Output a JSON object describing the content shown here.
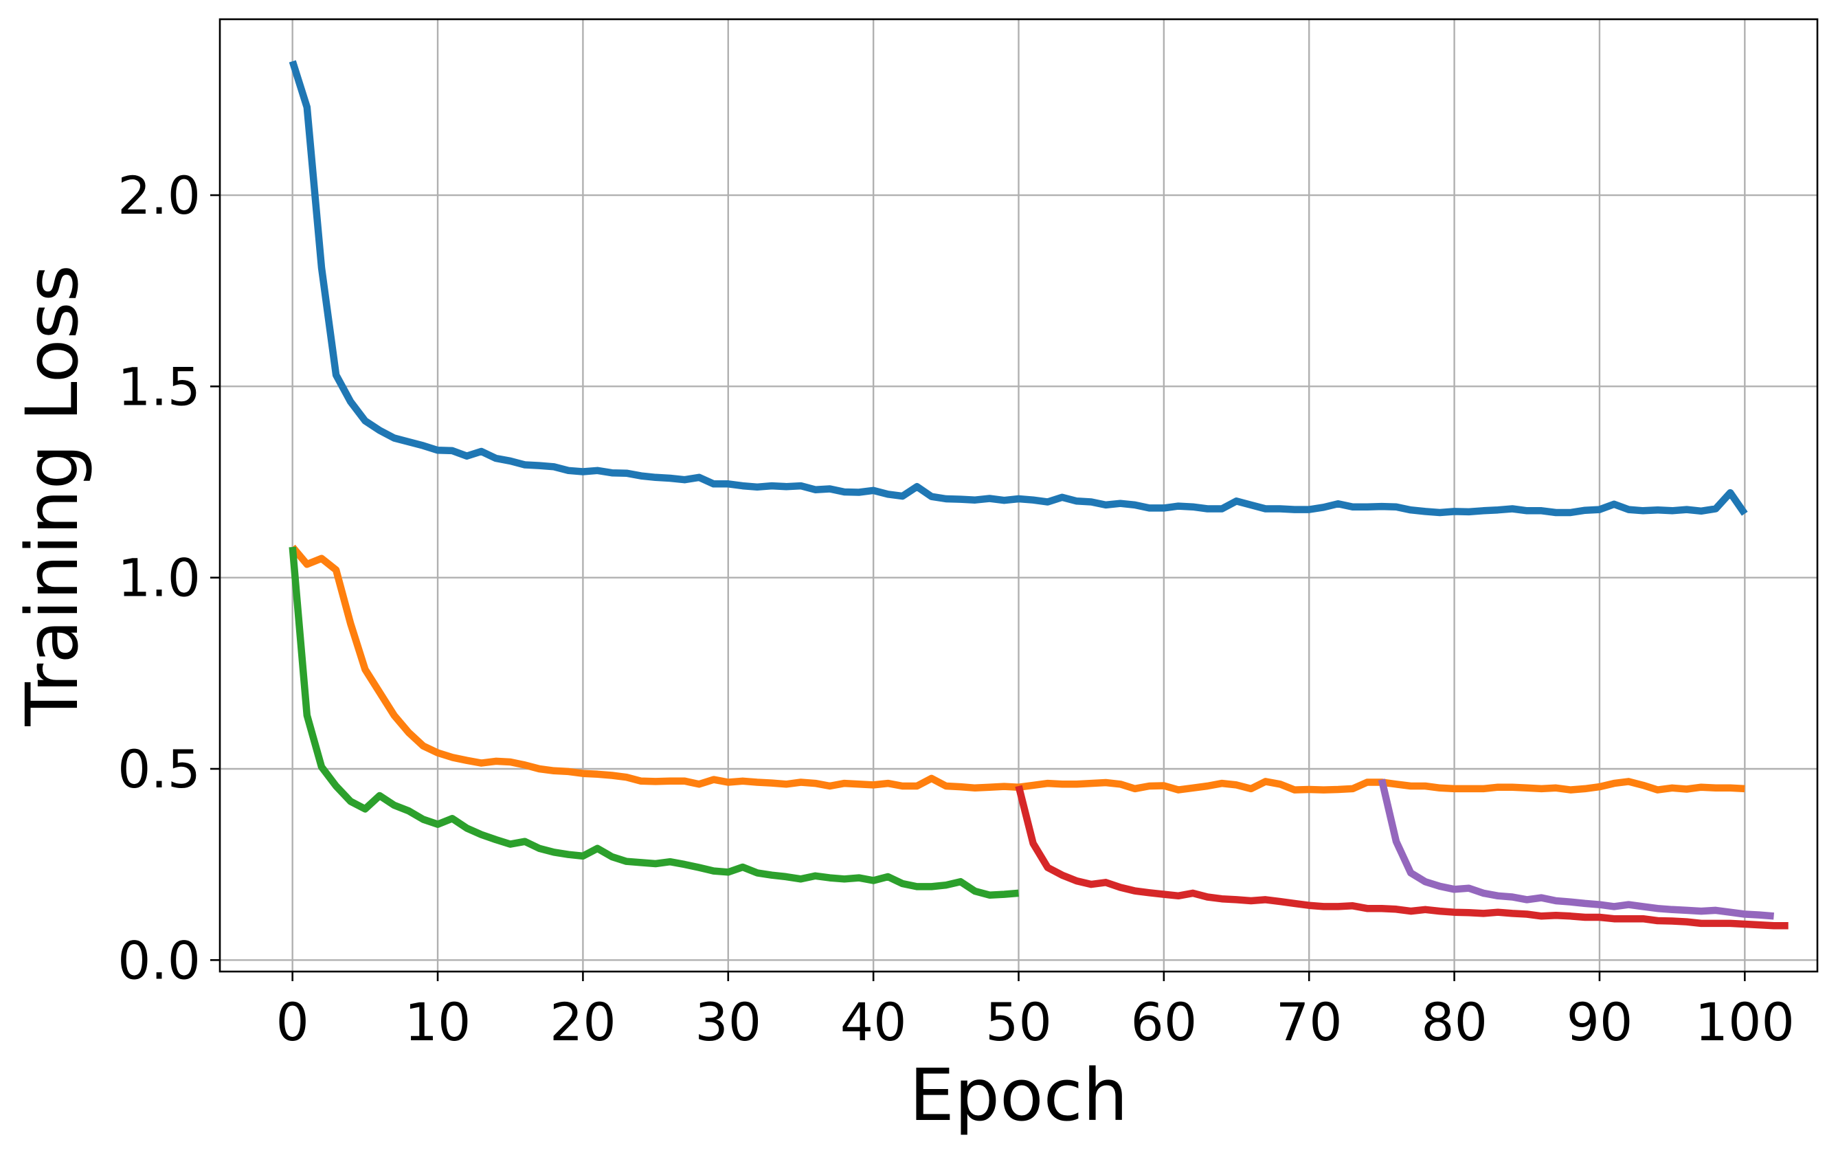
{
  "chart_data": {
    "type": "line",
    "title": "",
    "xlabel": "Epoch",
    "ylabel": "Training Loss",
    "xlim": [
      -5,
      105
    ],
    "ylim": [
      -0.03,
      2.46
    ],
    "xticks": [
      0,
      10,
      20,
      30,
      40,
      50,
      60,
      70,
      80,
      90,
      100
    ],
    "xtick_labels": [
      "0",
      "10",
      "20",
      "30",
      "40",
      "50",
      "60",
      "70",
      "80",
      "90",
      "100"
    ],
    "yticks": [
      0.0,
      0.5,
      1.0,
      1.5,
      2.0
    ],
    "ytick_labels": [
      "0.0",
      "0.5",
      "1.0",
      "1.5",
      "2.0"
    ],
    "grid": true,
    "legend": false,
    "series": [
      {
        "color": "#1f77b4",
        "x_start": 0,
        "values": [
          2.35,
          2.23,
          1.81,
          1.53,
          1.46,
          1.41,
          1.385,
          1.365,
          1.355,
          1.345,
          1.333,
          1.332,
          1.318,
          1.33,
          1.312,
          1.305,
          1.295,
          1.293,
          1.29,
          1.28,
          1.277,
          1.28,
          1.274,
          1.273,
          1.266,
          1.262,
          1.26,
          1.256,
          1.262,
          1.245,
          1.245,
          1.24,
          1.237,
          1.24,
          1.238,
          1.24,
          1.23,
          1.232,
          1.224,
          1.223,
          1.228,
          1.218,
          1.213,
          1.238,
          1.212,
          1.206,
          1.205,
          1.203,
          1.207,
          1.202,
          1.206,
          1.203,
          1.198,
          1.21,
          1.2,
          1.198,
          1.19,
          1.194,
          1.19,
          1.182,
          1.182,
          1.187,
          1.185,
          1.18,
          1.18,
          1.2,
          1.19,
          1.18,
          1.18,
          1.178,
          1.178,
          1.184,
          1.193,
          1.185,
          1.185,
          1.186,
          1.185,
          1.177,
          1.173,
          1.17,
          1.173,
          1.172,
          1.175,
          1.177,
          1.18,
          1.175,
          1.175,
          1.17,
          1.17,
          1.176,
          1.178,
          1.192,
          1.178,
          1.175,
          1.177,
          1.175,
          1.178,
          1.174,
          1.18,
          1.222,
          1.167
        ]
      },
      {
        "color": "#ff7f0e",
        "x_start": 0,
        "values": [
          1.08,
          1.035,
          1.05,
          1.02,
          0.88,
          0.76,
          0.7,
          0.64,
          0.595,
          0.56,
          0.542,
          0.53,
          0.522,
          0.515,
          0.52,
          0.518,
          0.51,
          0.5,
          0.495,
          0.493,
          0.488,
          0.486,
          0.483,
          0.478,
          0.468,
          0.467,
          0.468,
          0.468,
          0.46,
          0.472,
          0.465,
          0.468,
          0.465,
          0.463,
          0.46,
          0.465,
          0.462,
          0.455,
          0.462,
          0.46,
          0.458,
          0.462,
          0.455,
          0.455,
          0.475,
          0.455,
          0.453,
          0.45,
          0.452,
          0.454,
          0.452,
          0.457,
          0.462,
          0.46,
          0.46,
          0.462,
          0.464,
          0.46,
          0.448,
          0.455,
          0.456,
          0.445,
          0.45,
          0.455,
          0.462,
          0.458,
          0.448,
          0.467,
          0.46,
          0.445,
          0.446,
          0.445,
          0.446,
          0.448,
          0.465,
          0.465,
          0.46,
          0.455,
          0.455,
          0.45,
          0.448,
          0.448,
          0.448,
          0.452,
          0.452,
          0.45,
          0.448,
          0.45,
          0.445,
          0.448,
          0.453,
          0.462,
          0.467,
          0.457,
          0.445,
          0.45,
          0.447,
          0.452,
          0.45,
          0.45,
          0.448
        ]
      },
      {
        "color": "#2ca02c",
        "x_start": 0,
        "values": [
          1.08,
          0.64,
          0.505,
          0.455,
          0.415,
          0.395,
          0.43,
          0.405,
          0.39,
          0.368,
          0.355,
          0.37,
          0.345,
          0.328,
          0.315,
          0.303,
          0.31,
          0.292,
          0.282,
          0.276,
          0.272,
          0.292,
          0.27,
          0.258,
          0.255,
          0.252,
          0.257,
          0.25,
          0.242,
          0.233,
          0.23,
          0.243,
          0.228,
          0.222,
          0.218,
          0.212,
          0.22,
          0.215,
          0.212,
          0.215,
          0.208,
          0.218,
          0.2,
          0.192,
          0.192,
          0.196,
          0.205,
          0.18,
          0.17,
          0.172,
          0.175
        ]
      },
      {
        "color": "#d62728",
        "x_start": 50,
        "values": [
          0.455,
          0.305,
          0.242,
          0.222,
          0.207,
          0.198,
          0.203,
          0.19,
          0.181,
          0.176,
          0.172,
          0.168,
          0.175,
          0.165,
          0.16,
          0.158,
          0.155,
          0.158,
          0.153,
          0.148,
          0.143,
          0.14,
          0.14,
          0.142,
          0.135,
          0.135,
          0.133,
          0.128,
          0.132,
          0.128,
          0.125,
          0.124,
          0.122,
          0.125,
          0.122,
          0.12,
          0.115,
          0.117,
          0.115,
          0.112,
          0.112,
          0.108,
          0.108,
          0.108,
          0.103,
          0.102,
          0.1,
          0.096,
          0.096,
          0.096,
          0.094,
          0.092,
          0.09,
          0.09
        ]
      },
      {
        "color": "#9467bd",
        "x_start": 75,
        "values": [
          0.472,
          0.31,
          0.228,
          0.205,
          0.193,
          0.185,
          0.188,
          0.175,
          0.168,
          0.165,
          0.158,
          0.163,
          0.155,
          0.152,
          0.148,
          0.145,
          0.14,
          0.145,
          0.14,
          0.135,
          0.132,
          0.13,
          0.128,
          0.13,
          0.125,
          0.12,
          0.118,
          0.115
        ]
      }
    ]
  }
}
